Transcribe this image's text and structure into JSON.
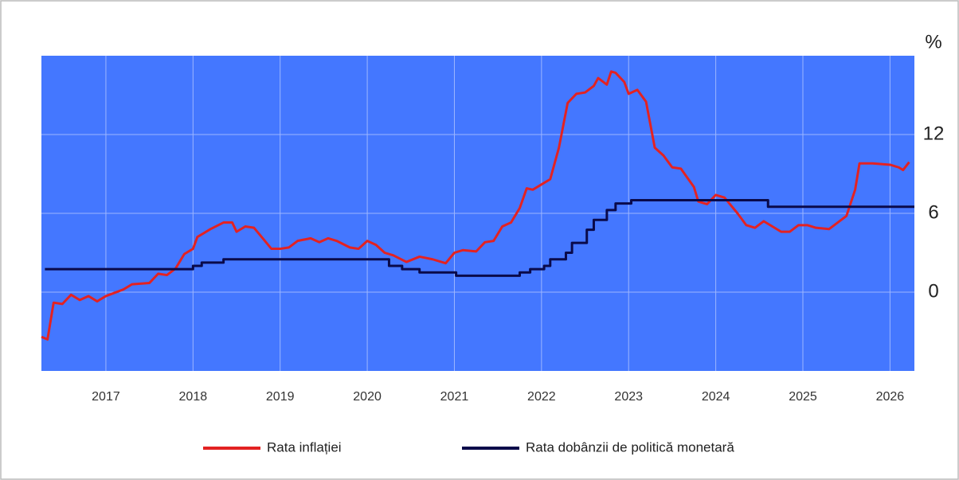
{
  "chart_data": {
    "type": "line",
    "y_unit_label": "%",
    "xlim": [
      2016.26,
      2026.28
    ],
    "xticks": [
      2017,
      2018,
      2019,
      2020,
      2021,
      2022,
      2023,
      2024,
      2025,
      2026
    ],
    "ylim": [
      -6,
      18
    ],
    "yticks": [
      0,
      6,
      12
    ],
    "grid": true,
    "background": "#4477ff",
    "legend": "bottom",
    "series": [
      {
        "name": "Rata inflației",
        "color": "#e32222",
        "x": [
          2016.26,
          2016.33,
          2016.4,
          2016.5,
          2016.6,
          2016.7,
          2016.8,
          2016.9,
          2017.0,
          2017.2,
          2017.3,
          2017.5,
          2017.6,
          2017.7,
          2017.8,
          2017.9,
          2018.0,
          2018.05,
          2018.2,
          2018.35,
          2018.45,
          2018.5,
          2018.6,
          2018.7,
          2018.8,
          2018.9,
          2019.0,
          2019.1,
          2019.2,
          2019.35,
          2019.45,
          2019.55,
          2019.65,
          2019.8,
          2019.9,
          2020.0,
          2020.1,
          2020.2,
          2020.3,
          2020.45,
          2020.6,
          2020.75,
          2020.9,
          2021.0,
          2021.1,
          2021.25,
          2021.35,
          2021.45,
          2021.55,
          2021.65,
          2021.75,
          2021.83,
          2021.9,
          2022.0,
          2022.1,
          2022.2,
          2022.3,
          2022.4,
          2022.5,
          2022.6,
          2022.65,
          2022.75,
          2022.8,
          2022.85,
          2022.95,
          2023.0,
          2023.1,
          2023.2,
          2023.3,
          2023.4,
          2023.5,
          2023.6,
          2023.75,
          2023.8,
          2023.9,
          2024.0,
          2024.1,
          2024.25,
          2024.35,
          2024.45,
          2024.55,
          2024.65,
          2024.75,
          2024.85,
          2024.95,
          2025.05,
          2025.15,
          2025.3,
          2025.4,
          2025.5,
          2025.6,
          2025.65,
          2025.8,
          2026.0,
          2026.1,
          2026.15,
          2026.22
        ],
        "values": [
          -3.4,
          -3.6,
          -0.8,
          -0.9,
          -0.2,
          -0.6,
          -0.3,
          -0.7,
          -0.3,
          0.2,
          0.6,
          0.7,
          1.4,
          1.3,
          1.8,
          2.9,
          3.3,
          4.2,
          4.8,
          5.3,
          5.3,
          4.6,
          5.0,
          4.9,
          4.1,
          3.3,
          3.3,
          3.4,
          3.9,
          4.1,
          3.8,
          4.1,
          3.9,
          3.4,
          3.3,
          3.9,
          3.6,
          3.0,
          2.8,
          2.3,
          2.7,
          2.5,
          2.2,
          3.0,
          3.2,
          3.1,
          3.8,
          3.9,
          5.0,
          5.3,
          6.4,
          7.9,
          7.8,
          8.2,
          8.6,
          11.0,
          14.4,
          15.1,
          15.2,
          15.7,
          16.3,
          15.8,
          16.8,
          16.7,
          16.0,
          15.1,
          15.4,
          14.5,
          11.0,
          10.4,
          9.5,
          9.4,
          8.0,
          6.9,
          6.7,
          7.4,
          7.2,
          6.0,
          5.1,
          4.9,
          5.4,
          5.0,
          4.6,
          4.6,
          5.1,
          5.1,
          4.9,
          4.8,
          5.3,
          5.8,
          7.8,
          9.8,
          9.8,
          9.7,
          9.5,
          9.3,
          9.9
        ]
      },
      {
        "name": "Rata dobânzii de politică monetară",
        "color": "#0a0a4a",
        "step": "post",
        "x": [
          2016.3,
          2018.0,
          2018.1,
          2018.35,
          2020.25,
          2020.4,
          2020.6,
          2021.02,
          2021.75,
          2021.87,
          2022.03,
          2022.1,
          2022.28,
          2022.35,
          2022.52,
          2022.6,
          2022.75,
          2022.85,
          2023.03,
          2024.6,
          2026.28
        ],
        "values": [
          1.75,
          2.0,
          2.25,
          2.5,
          2.0,
          1.75,
          1.5,
          1.25,
          1.5,
          1.75,
          2.0,
          2.5,
          3.0,
          3.75,
          4.75,
          5.5,
          6.25,
          6.75,
          7.0,
          6.5,
          6.5
        ]
      }
    ]
  }
}
